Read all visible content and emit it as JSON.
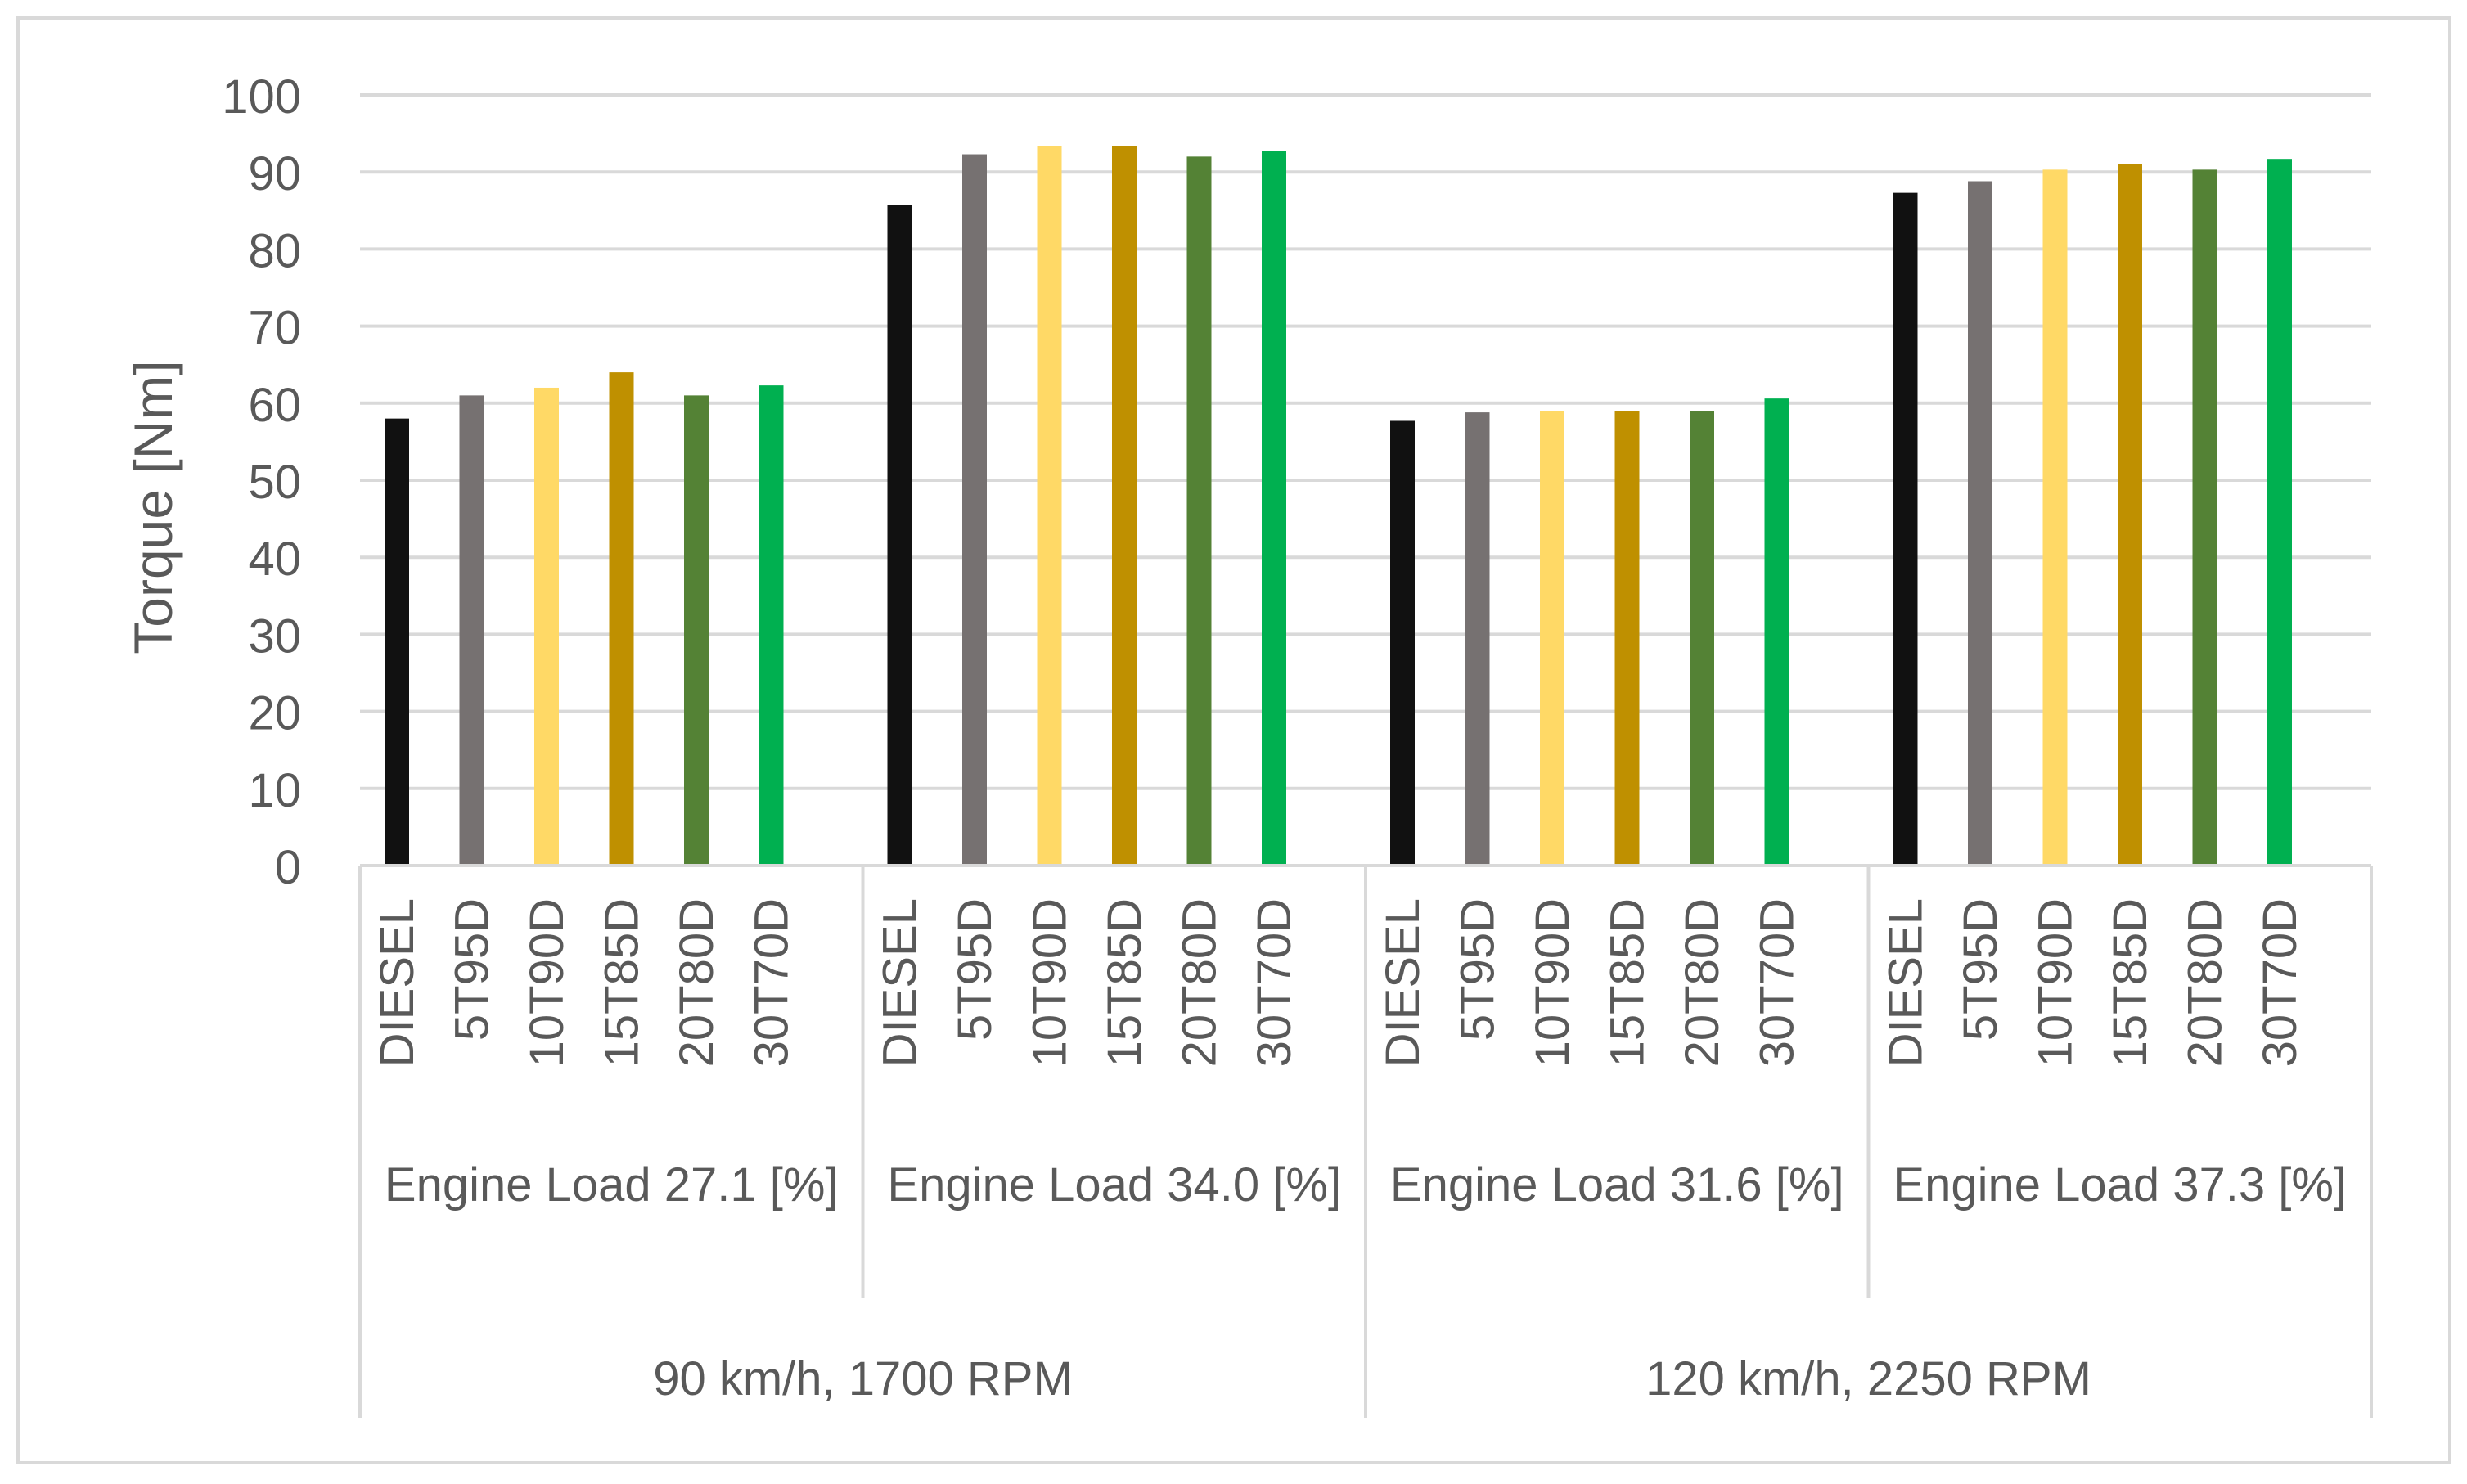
{
  "chart_data": {
    "type": "bar",
    "title": "",
    "ylabel": "Torque [Nm]",
    "xlabel": "",
    "ylim": [
      0,
      100
    ],
    "ytick_step": 10,
    "grid": true,
    "series_names": [
      "DIESEL",
      "5T95D",
      "10T90D",
      "15T85D",
      "20T80D",
      "30T70D"
    ],
    "colors": [
      "#111111",
      "#767171",
      "#FFD966",
      "#BF9000",
      "#548235",
      "#00B050"
    ],
    "groups": [
      {
        "load_label": "Engine Load 27.1 [%]",
        "values": [
          58.0,
          61.0,
          62.0,
          64.0,
          61.0,
          62.3
        ]
      },
      {
        "load_label": "Engine Load 34.0 [%]",
        "values": [
          85.7,
          92.3,
          93.4,
          93.4,
          92.0,
          92.7
        ]
      },
      {
        "load_label": "Engine Load 31.6 [%]",
        "values": [
          57.7,
          58.8,
          59.0,
          59.0,
          59.0,
          60.6
        ]
      },
      {
        "load_label": "Engine Load 37.3 [%]",
        "values": [
          87.3,
          88.8,
          90.3,
          91.0,
          90.3,
          91.7
        ]
      }
    ],
    "speed_groups": [
      {
        "label": "90 km/h, 1700 RPM",
        "group_count": 2
      },
      {
        "label": "120 km/h, 2250 RPM",
        "group_count": 2
      }
    ]
  }
}
